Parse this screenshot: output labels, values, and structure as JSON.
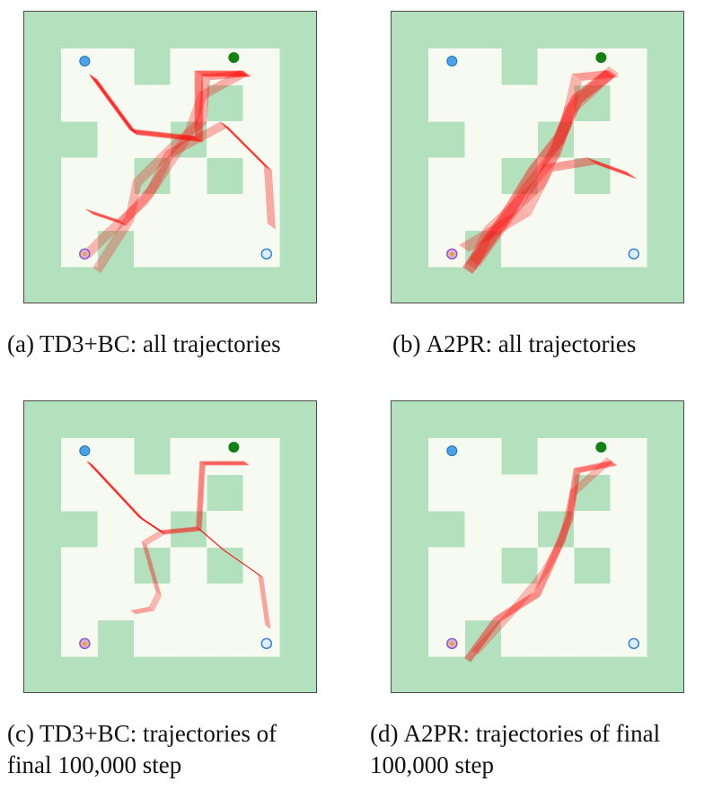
{
  "maze": {
    "outer_color": "#b3e0bd",
    "floor_color": "#f6faf0",
    "border_color": "#4a4a4a",
    "trajectory_color": "#ff0000",
    "goal_color": "#128012",
    "start_marker": "star-circle",
    "waypoint_marker": "blue-circle"
  },
  "panels": [
    {
      "id": "a",
      "tag": "(a)",
      "caption": "TD3+BC: all trajectories"
    },
    {
      "id": "b",
      "tag": "(b)",
      "caption": "A2PR: all trajectories"
    },
    {
      "id": "c",
      "tag": "(c)",
      "caption_line1": "TD3+BC: trajectories of",
      "caption_line2": "final 100,000 step"
    },
    {
      "id": "d",
      "tag": "(d)",
      "caption_line1": "A2PR: trajectories of final",
      "caption_line2": "100,000 step"
    }
  ]
}
